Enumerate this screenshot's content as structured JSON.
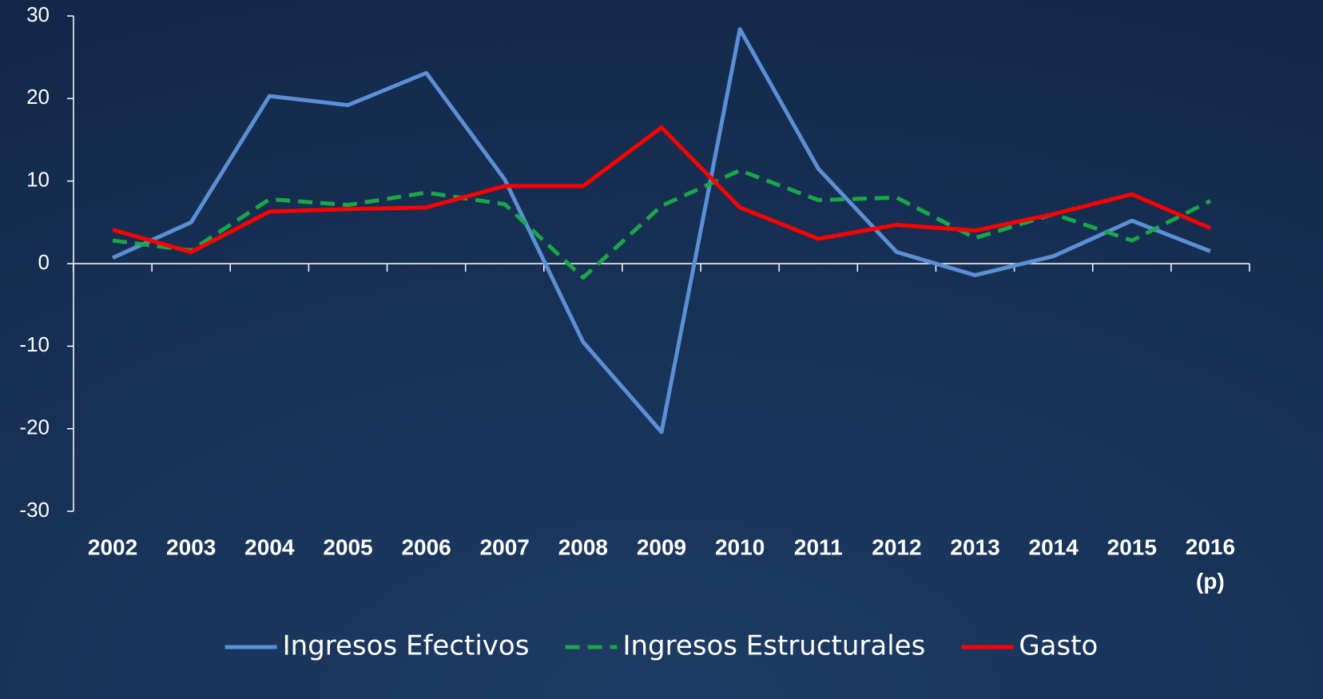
{
  "chart_data": {
    "type": "line",
    "categories": [
      "2002",
      "2003",
      "2004",
      "2005",
      "2006",
      "2007",
      "2008",
      "2009",
      "2010",
      "2011",
      "2012",
      "2013",
      "2014",
      "2015",
      "2016 (p)"
    ],
    "series": [
      {
        "name": "Ingresos Efectivos",
        "color": "#5b8fd6",
        "dash": "solid",
        "values": [
          0.7,
          5.0,
          20.3,
          19.2,
          23.1,
          10.2,
          -9.5,
          -20.4,
          28.4,
          11.5,
          1.4,
          -1.4,
          0.9,
          5.2,
          1.5
        ]
      },
      {
        "name": "Ingresos Estructurales",
        "color": "#1aa64a",
        "dash": "dashed",
        "values": [
          2.8,
          1.6,
          7.8,
          7.1,
          8.6,
          7.2,
          -1.7,
          7.0,
          11.3,
          7.7,
          8.0,
          3.1,
          6.0,
          2.8,
          7.6
        ]
      },
      {
        "name": "Gasto",
        "color": "#ff0000",
        "dash": "solid",
        "values": [
          4.1,
          1.4,
          6.3,
          6.6,
          6.8,
          9.4,
          9.4,
          16.5,
          6.8,
          3.0,
          4.7,
          4.0,
          6.0,
          8.4,
          4.3
        ]
      }
    ],
    "ylim": [
      -30,
      30
    ],
    "yticks": [
      -30,
      -20,
      -10,
      0,
      10,
      20,
      30
    ],
    "grid": false,
    "legend": "bottom"
  }
}
